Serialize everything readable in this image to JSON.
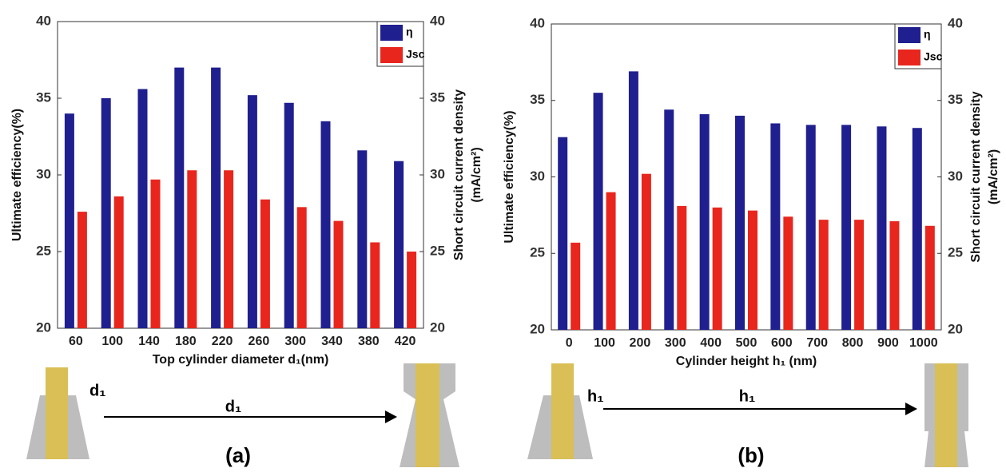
{
  "chart_data": [
    {
      "type": "bar",
      "x_label": "Top cylinder diameter d₁(nm)",
      "y_label": "Ultimate efficiency(%)",
      "y2_label": [
        "Short circuit current density",
        "(mA/cm²)"
      ],
      "categories": [
        "60",
        "100",
        "140",
        "180",
        "220",
        "260",
        "300",
        "340",
        "380",
        "420"
      ],
      "series": [
        {
          "name": "η",
          "color": "#1f1f8f",
          "values": [
            34.0,
            35.0,
            35.6,
            37.0,
            37.0,
            35.2,
            34.7,
            33.5,
            31.6,
            30.9
          ]
        },
        {
          "name": "Jsc",
          "color": "#e8261e",
          "axis": "y2",
          "values": [
            27.6,
            28.6,
            29.7,
            30.3,
            30.3,
            28.4,
            27.9,
            27.0,
            25.6,
            25.0
          ]
        }
      ],
      "ylim": [
        20,
        40
      ],
      "yticks": [
        20,
        25,
        30,
        35,
        40
      ],
      "y2lim": [
        20,
        40
      ],
      "y2ticks": [
        20,
        25,
        30,
        35,
        40
      ],
      "legend": "upper right"
    },
    {
      "type": "bar",
      "x_label": "Cylinder height h₁ (nm)",
      "y_label": "Ultimate efficiency(%)",
      "y2_label": [
        "Short circuit current density",
        "(mA/cm²)"
      ],
      "categories": [
        "0",
        "100",
        "200",
        "300",
        "400",
        "500",
        "600",
        "700",
        "800",
        "900",
        "1000"
      ],
      "series": [
        {
          "name": "η",
          "color": "#1f1f8f",
          "values": [
            32.6,
            35.5,
            36.9,
            34.4,
            34.1,
            34.0,
            33.5,
            33.4,
            33.4,
            33.3,
            33.2
          ]
        },
        {
          "name": "Jsc",
          "color": "#e8261e",
          "axis": "y2",
          "values": [
            25.7,
            29.0,
            30.2,
            28.1,
            28.0,
            27.8,
            27.4,
            27.2,
            27.2,
            27.1,
            26.8
          ]
        }
      ],
      "ylim": [
        20,
        40
      ],
      "yticks": [
        20,
        25,
        30,
        35,
        40
      ],
      "y2lim": [
        20,
        40
      ],
      "y2ticks": [
        20,
        25,
        30,
        35,
        40
      ],
      "legend": "upper right"
    }
  ],
  "schematics": [
    {
      "labels": [
        "d₁",
        "d₁"
      ],
      "caption": "(a)"
    },
    {
      "labels": [
        "h₁",
        "h₁"
      ],
      "caption": "(b)"
    }
  ]
}
